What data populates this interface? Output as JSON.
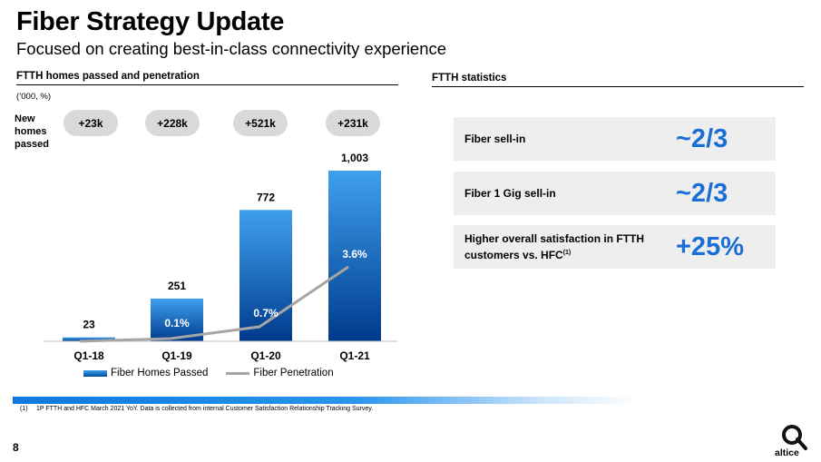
{
  "title": "Fiber Strategy Update",
  "subtitle": "Focused on creating best-in-class connectivity experience",
  "left_section": {
    "heading": "FTTH homes passed and penetration",
    "units": "(’000, %)",
    "new_homes_label": "New homes passed"
  },
  "right_section": {
    "heading": "FTTH statistics",
    "stats": [
      {
        "label": "Fiber sell-in",
        "value": "~2/3"
      },
      {
        "label": "Fiber 1 Gig sell-in",
        "value": "~2/3"
      },
      {
        "label_line1": "Higher overall satisfaction in FTTH",
        "label_line2": "customers vs. HFC",
        "label_sup": "(1)",
        "value": "+25%"
      }
    ]
  },
  "chart_data": {
    "type": "bar",
    "categories": [
      "Q1-18",
      "Q1-19",
      "Q1-20",
      "Q1-21"
    ],
    "series": [
      {
        "name": "Fiber Homes Passed",
        "type": "bar",
        "values": [
          23,
          251,
          772,
          1003
        ],
        "labels": [
          "23",
          "251",
          "772",
          "1,003"
        ]
      },
      {
        "name": "Fiber Penetration",
        "type": "line",
        "values": [
          0.0,
          0.1,
          0.7,
          3.6
        ],
        "labels": [
          "",
          "0.1%",
          "0.7%",
          "3.6%"
        ]
      }
    ],
    "new_homes_passed": [
      "+23k",
      "+228k",
      "+521k",
      "+231k"
    ],
    "ylim": [
      0,
      1003
    ],
    "colors": {
      "bar_top": "#3fa0ee",
      "bar_bottom": "#003a8c",
      "line": "#a6a6a6"
    },
    "legend": "bottom-left"
  },
  "footnote_number": "(1)",
  "footnote": "1P FTTH and HFC March 2021 YoY. Data is collected from internal Customer Satisfaction Relationship Tracking Survey.",
  "page_number": "8",
  "brand": {
    "name": "altice",
    "logo_icon": "altice-logo-icon"
  }
}
